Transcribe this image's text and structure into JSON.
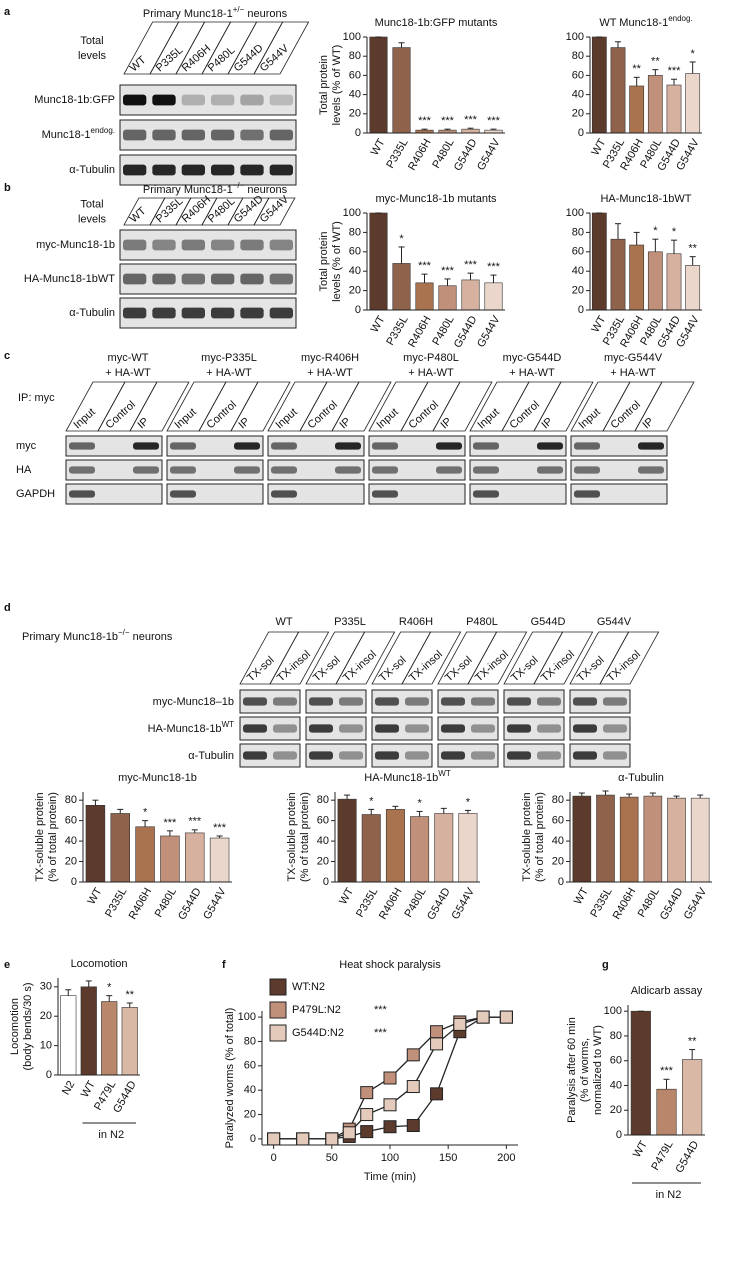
{
  "panels": [
    "a",
    "b",
    "c",
    "d",
    "e",
    "f",
    "g"
  ],
  "blots": {
    "a": {
      "title": "Primary Munc18-1",
      "title_sup": "+/−",
      "title_end": " neurons",
      "header": [
        "Total",
        "levels"
      ],
      "lanes": [
        "WT",
        "P335L",
        "R406H",
        "P480L",
        "G544D",
        "G544V"
      ],
      "rows": [
        {
          "label": "Munc18-1b:GFP"
        },
        {
          "label": "Munc18-1",
          "sup": "endog."
        },
        {
          "label": "α-Tubulin"
        }
      ]
    },
    "b": {
      "title": "Primary Munc18-1",
      "title_sup": "−/−",
      "title_end": " neurons",
      "header": [
        "Total",
        "levels"
      ],
      "lanes": [
        "WT",
        "P335L",
        "R406H",
        "P480L",
        "G544D",
        "G544V"
      ],
      "rows": [
        {
          "label": "myc-Munc18-1b"
        },
        {
          "label": "HA-Munc18-1bWT"
        },
        {
          "label": "α-Tubulin"
        }
      ]
    },
    "c": {
      "ip_label": "IP: myc",
      "groups": [
        [
          "myc-WT",
          "+ HA-WT"
        ],
        [
          "myc-P335L",
          "+ HA-WT"
        ],
        [
          "myc-R406H",
          "+ HA-WT"
        ],
        [
          "myc-P480L",
          "+ HA-WT"
        ],
        [
          "myc-G544D",
          "+ HA-WT"
        ],
        [
          "myc-G544V",
          "+ HA-WT"
        ]
      ],
      "lanes": [
        "Input",
        "Control",
        "IP"
      ],
      "rows": [
        "myc",
        "HA",
        "GAPDH"
      ]
    },
    "d": {
      "title": "Primary Munc18-1b",
      "title_sup": "−/−",
      "title_end": " neurons",
      "groups": [
        "WT",
        "P335L",
        "R406H",
        "P480L",
        "G544D",
        "G544V"
      ],
      "lanes": [
        "TX-sol",
        "TX-insol"
      ],
      "rows": [
        {
          "label": "myc-Munc18–1b"
        },
        {
          "label": "HA-Munc18-1b",
          "sup": "WT"
        },
        {
          "label": "α-Tubulin"
        }
      ]
    }
  },
  "chart_data": [
    {
      "type": "bar",
      "title": "Munc18-1b:GFP mutants",
      "ylabel": [
        "Total protein",
        "levels (% of WT)"
      ],
      "categories": [
        "WT",
        "P335L",
        "R406H",
        "P480L",
        "G544D",
        "G544V"
      ],
      "values": [
        100,
        89,
        3,
        3,
        4,
        3
      ],
      "errors": [
        0,
        5,
        1,
        1,
        1,
        1
      ],
      "significance": [
        null,
        null,
        "***",
        "***",
        "***",
        "***"
      ],
      "colors": [
        "#5c3b2c",
        "#8f634b",
        "#a9734f",
        "#c0907a",
        "#d6b19f",
        "#ead6ca"
      ],
      "ylim": [
        0,
        100
      ],
      "yticks": [
        0,
        20,
        40,
        60,
        80,
        100
      ]
    },
    {
      "type": "bar",
      "title": "WT Munc18-1",
      "title_sup": "endog.",
      "categories": [
        "WT",
        "P335L",
        "R406H",
        "P480L",
        "G544D",
        "G544V"
      ],
      "values": [
        100,
        89,
        49,
        60,
        50,
        62
      ],
      "errors": [
        0,
        6,
        9,
        6,
        6,
        12
      ],
      "significance": [
        null,
        null,
        "**",
        "**",
        "***",
        "*"
      ],
      "colors": [
        "#5c3b2c",
        "#8f634b",
        "#a9734f",
        "#c0907a",
        "#d6b19f",
        "#ead6ca"
      ],
      "ylim": [
        0,
        100
      ],
      "yticks": [
        0,
        20,
        40,
        60,
        80,
        100
      ]
    },
    {
      "type": "bar",
      "title": "myc-Munc18-1b mutants",
      "ylabel": [
        "Total protein",
        "levels (% of WT)"
      ],
      "categories": [
        "WT",
        "P335L",
        "R406H",
        "P480L",
        "G544D",
        "G544V"
      ],
      "values": [
        100,
        48,
        28,
        25,
        31,
        28
      ],
      "errors": [
        0,
        17,
        9,
        7,
        7,
        8
      ],
      "significance": [
        null,
        "*",
        "***",
        "***",
        "***",
        "***"
      ],
      "colors": [
        "#5c3b2c",
        "#8f634b",
        "#a9734f",
        "#c0907a",
        "#d6b19f",
        "#ead6ca"
      ],
      "ylim": [
        0,
        100
      ],
      "yticks": [
        0,
        20,
        40,
        60,
        80,
        100
      ]
    },
    {
      "type": "bar",
      "title": "HA-Munc18-1bWT",
      "categories": [
        "WT",
        "P335L",
        "R406H",
        "P480L",
        "G544D",
        "G544V"
      ],
      "values": [
        100,
        73,
        67,
        60,
        58,
        46
      ],
      "errors": [
        0,
        16,
        13,
        13,
        14,
        9
      ],
      "significance": [
        null,
        null,
        null,
        "*",
        "*",
        "**"
      ],
      "colors": [
        "#5c3b2c",
        "#8f634b",
        "#a9734f",
        "#c0907a",
        "#d6b19f",
        "#ead6ca"
      ],
      "ylim": [
        0,
        100
      ],
      "yticks": [
        0,
        20,
        40,
        60,
        80,
        100
      ]
    },
    {
      "type": "bar",
      "title": "myc-Munc18-1b",
      "ylabel": [
        "TX-soluble protein",
        "(% of total protein)"
      ],
      "categories": [
        "WT",
        "P335L",
        "R406H",
        "P480L",
        "G544D",
        "G544V"
      ],
      "values": [
        75,
        67,
        54,
        45,
        48,
        43
      ],
      "errors": [
        5,
        4,
        6,
        5,
        3,
        2
      ],
      "significance": [
        null,
        null,
        "*",
        "***",
        "***",
        "***"
      ],
      "colors": [
        "#5c3b2c",
        "#8f634b",
        "#a9734f",
        "#c0907a",
        "#d6b19f",
        "#ead6ca"
      ],
      "ylim": [
        0,
        88
      ],
      "yticks": [
        0,
        20,
        40,
        60,
        80
      ]
    },
    {
      "type": "bar",
      "title": "HA-Munc18-1b",
      "title_sup": "WT",
      "ylabel": [
        "TX-soluble protein",
        "(% of total protein)"
      ],
      "categories": [
        "WT",
        "P335L",
        "R406H",
        "P480L",
        "G544D",
        "G544V"
      ],
      "values": [
        81,
        66,
        71,
        64,
        67,
        67
      ],
      "errors": [
        4,
        5,
        3,
        5,
        5,
        3
      ],
      "significance": [
        null,
        "*",
        null,
        "*",
        null,
        "*"
      ],
      "colors": [
        "#5c3b2c",
        "#8f634b",
        "#a9734f",
        "#c0907a",
        "#d6b19f",
        "#ead6ca"
      ],
      "ylim": [
        0,
        88
      ],
      "yticks": [
        0,
        20,
        40,
        60,
        80
      ]
    },
    {
      "type": "bar",
      "title": "α-Tubulin",
      "ylabel": [
        "TX-soluble protein",
        "(% of total protein)"
      ],
      "categories": [
        "WT",
        "P335L",
        "R406H",
        "P480L",
        "G544D",
        "G544V"
      ],
      "values": [
        84,
        85,
        83,
        84,
        82,
        82
      ],
      "errors": [
        3,
        4,
        3,
        3,
        2,
        3
      ],
      "colors": [
        "#5c3b2c",
        "#8f634b",
        "#a9734f",
        "#c0907a",
        "#d6b19f",
        "#ead6ca"
      ],
      "ylim": [
        0,
        88
      ],
      "yticks": [
        0,
        20,
        40,
        60,
        80
      ]
    },
    {
      "type": "bar",
      "title": "Locomotion",
      "ylabel": [
        "Locomotion",
        "(body bends/30 s)"
      ],
      "categories": [
        "N2",
        "WT",
        "P479L",
        "G544D"
      ],
      "values": [
        27,
        30,
        25,
        23
      ],
      "errors": [
        2,
        2,
        2,
        1.5
      ],
      "significance": [
        null,
        null,
        "*",
        "**"
      ],
      "colors": [
        "#ffffff",
        "#5c3b2c",
        "#b8866a",
        "#d9b8a5"
      ],
      "ylim": [
        0,
        33
      ],
      "yticks": [
        0,
        10,
        20,
        30
      ],
      "group_label": "in N2"
    },
    {
      "type": "line",
      "title": "Heat shock paralysis",
      "xlabel": "Time (min)",
      "ylabel": "Paralyzed worms (% of total)",
      "x": [
        0,
        25,
        50,
        65,
        80,
        100,
        120,
        140,
        160,
        180,
        200
      ],
      "series": [
        {
          "name": "WT:N2",
          "color": "#5c3b2c",
          "values": [
            0,
            0,
            0,
            2,
            6,
            10,
            11,
            37,
            88,
            100,
            100
          ]
        },
        {
          "name": "P479L:N2",
          "color": "#c0907a",
          "values": [
            0,
            0,
            0,
            8,
            38,
            50,
            69,
            88,
            96,
            100,
            100
          ],
          "annotation": "***"
        },
        {
          "name": "G544D:N2",
          "color": "#e3cabb",
          "values": [
            0,
            0,
            0,
            5,
            20,
            28,
            43,
            78,
            94,
            100,
            100
          ],
          "annotation": "***"
        }
      ],
      "xlim": [
        -10,
        210
      ],
      "ylim": [
        -5,
        105
      ],
      "xticks": [
        0,
        50,
        100,
        150,
        200
      ],
      "yticks": [
        0,
        20,
        40,
        60,
        80,
        100
      ]
    },
    {
      "type": "bar",
      "title": "Aldicarb assay",
      "ylabel": [
        "Paralysis after 60 min",
        "(% of worms,",
        "normalized to WT)"
      ],
      "categories": [
        "WT",
        "P479L",
        "G544D"
      ],
      "values": [
        100,
        37,
        61
      ],
      "errors": [
        0,
        8,
        8
      ],
      "significance": [
        null,
        "***",
        "**"
      ],
      "colors": [
        "#5c3b2c",
        "#b8866a",
        "#d9b8a5"
      ],
      "ylim": [
        0,
        105
      ],
      "yticks": [
        0,
        20,
        40,
        60,
        80,
        100
      ],
      "group_label": "in N2"
    }
  ]
}
